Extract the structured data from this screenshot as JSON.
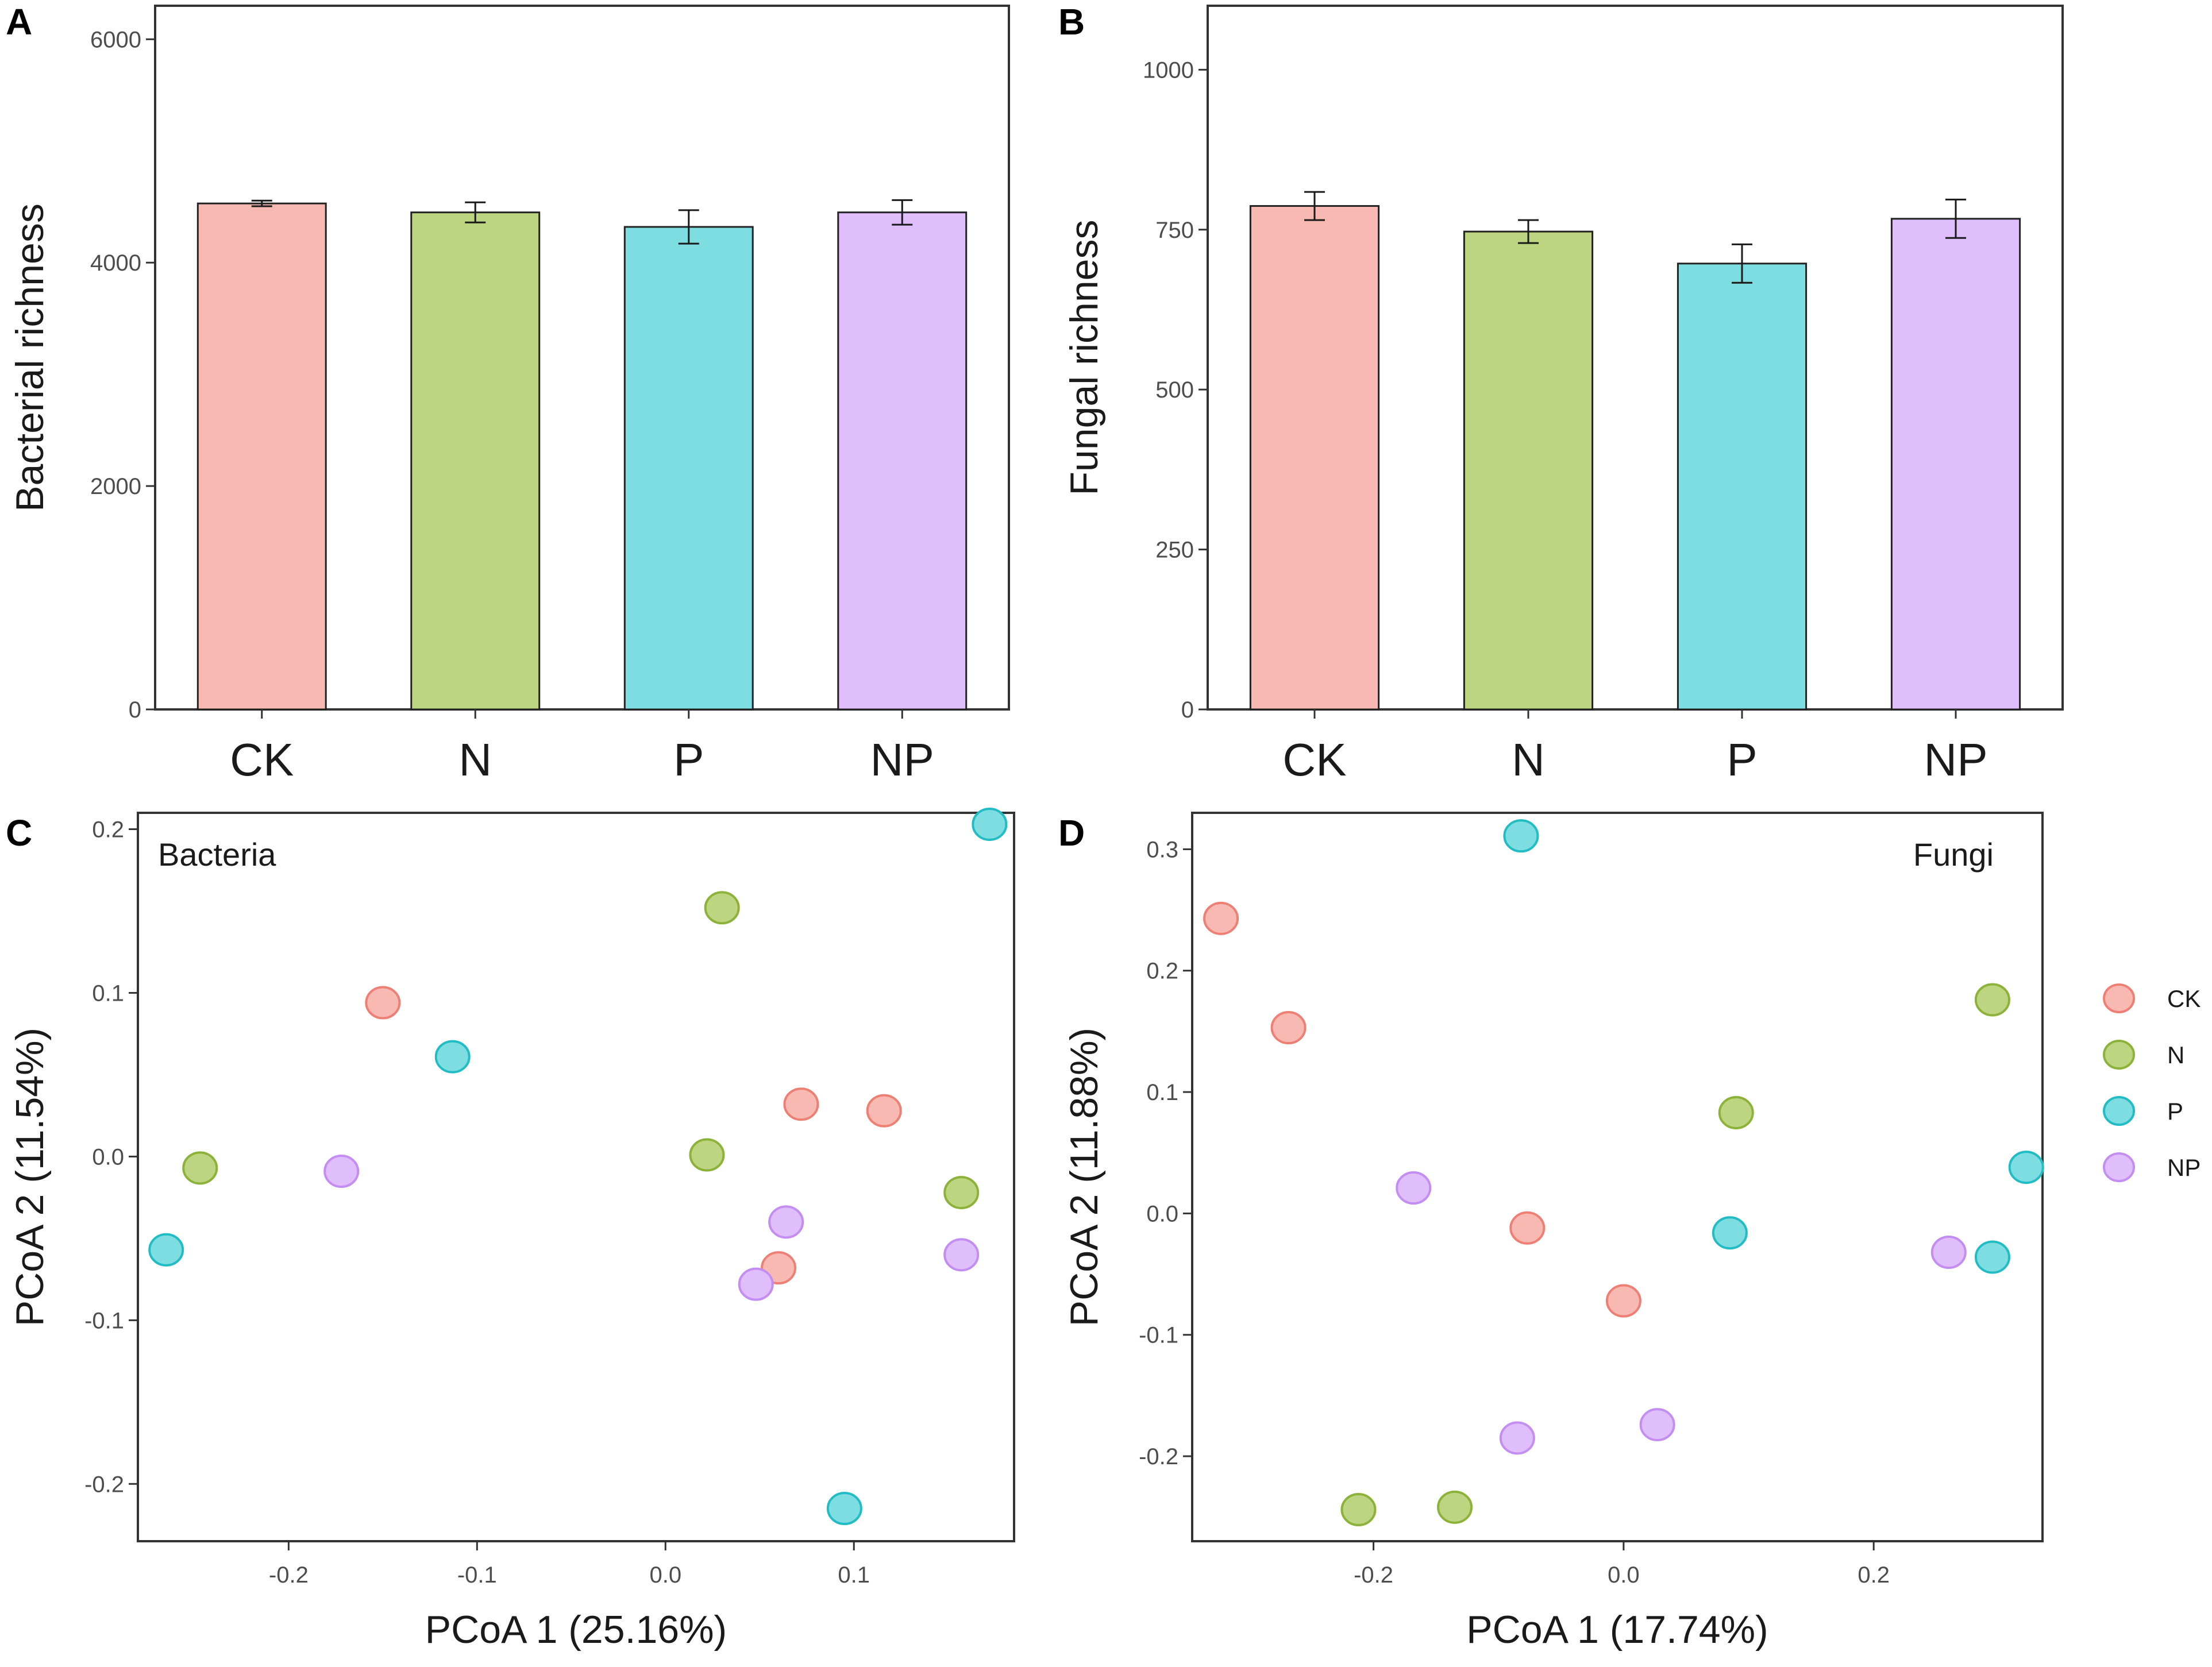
{
  "figure": {
    "panels": [
      "A",
      "B",
      "C",
      "D"
    ]
  },
  "colors": {
    "CK": {
      "fill": "#F8B9B2",
      "stroke": "#EE7F75"
    },
    "N": {
      "fill": "#BDD580",
      "stroke": "#8CB23A"
    },
    "P": {
      "fill": "#7DDDE0",
      "stroke": "#21BCC4"
    },
    "NP": {
      "fill": "#E0BEFC",
      "stroke": "#C48DF2"
    },
    "frame": "#333333",
    "errorbar": "#1a1a1a"
  },
  "legend": {
    "entries": [
      {
        "key": "CK",
        "label": "CK"
      },
      {
        "key": "N",
        "label": "N"
      },
      {
        "key": "P",
        "label": "P"
      },
      {
        "key": "NP",
        "label": "NP"
      }
    ]
  },
  "chart_data": [
    {
      "panel": "A",
      "type": "bar",
      "categories": [
        "CK",
        "N",
        "P",
        "NP"
      ],
      "values": [
        4530,
        4450,
        4320,
        4450
      ],
      "errors": [
        25,
        90,
        150,
        110
      ],
      "ylabel": "Bacterial richness",
      "xlabel": "",
      "ylim": [
        0,
        6300
      ],
      "yticks": [
        0,
        2000,
        4000,
        6000
      ],
      "ytick_labels": [
        "0",
        "2000",
        "4000",
        "6000"
      ]
    },
    {
      "panel": "B",
      "type": "bar",
      "categories": [
        "CK",
        "N",
        "P",
        "NP"
      ],
      "values": [
        787,
        747,
        697,
        767
      ],
      "errors": [
        22,
        18,
        30,
        30
      ],
      "ylabel": "Fungal richness",
      "xlabel": "",
      "ylim": [
        0,
        1100
      ],
      "yticks": [
        0,
        250,
        500,
        750,
        1000
      ],
      "ytick_labels": [
        "0",
        "250",
        "500",
        "750",
        "1000"
      ]
    },
    {
      "panel": "C",
      "type": "scatter",
      "title": "Bacteria",
      "xlabel": "PCoA 1 (25.16%)",
      "ylabel": "PCoA 2 (11.54%)",
      "xlim": [
        -0.28,
        0.185
      ],
      "ylim": [
        -0.235,
        0.21
      ],
      "xticks": [
        -0.2,
        -0.1,
        0.0,
        0.1
      ],
      "xtick_labels": [
        "-0.2",
        "-0.1",
        "0.0",
        "0.1"
      ],
      "yticks": [
        -0.2,
        -0.1,
        0.0,
        0.1,
        0.2
      ],
      "ytick_labels": [
        "-0.2",
        "-0.1",
        "0.0",
        "0.1",
        "0.2"
      ],
      "series": [
        {
          "name": "CK",
          "points": [
            [
              -0.15,
              0.094
            ],
            [
              0.072,
              0.032
            ],
            [
              0.116,
              0.028
            ],
            [
              0.06,
              -0.068
            ]
          ]
        },
        {
          "name": "N",
          "points": [
            [
              0.03,
              0.152
            ],
            [
              -0.247,
              -0.007
            ],
            [
              0.022,
              0.001
            ],
            [
              0.157,
              -0.022
            ]
          ]
        },
        {
          "name": "P",
          "points": [
            [
              0.172,
              0.203
            ],
            [
              -0.113,
              0.061
            ],
            [
              -0.265,
              -0.057
            ],
            [
              0.095,
              -0.215
            ]
          ]
        },
        {
          "name": "NP",
          "points": [
            [
              -0.172,
              -0.009
            ],
            [
              0.064,
              -0.04
            ],
            [
              0.157,
              -0.06
            ],
            [
              0.048,
              -0.078
            ]
          ]
        }
      ]
    },
    {
      "panel": "D",
      "type": "scatter",
      "title": "Fungi",
      "xlabel": "PCoA 1 (17.74%)",
      "ylabel": "PCoA 2 (11.88%)",
      "xlim": [
        -0.345,
        0.335
      ],
      "ylim": [
        -0.27,
        0.33
      ],
      "xticks": [
        -0.2,
        0.0,
        0.2
      ],
      "xtick_labels": [
        "-0.2",
        "0.0",
        "0.2"
      ],
      "yticks": [
        -0.2,
        -0.1,
        0.0,
        0.1,
        0.2,
        0.3
      ],
      "ytick_labels": [
        "-0.2",
        "-0.1",
        "0.0",
        "0.1",
        "0.2",
        "0.3"
      ],
      "series": [
        {
          "name": "CK",
          "points": [
            [
              -0.322,
              0.243
            ],
            [
              -0.268,
              0.153
            ],
            [
              -0.077,
              -0.012
            ],
            [
              0.0,
              -0.072
            ]
          ]
        },
        {
          "name": "N",
          "points": [
            [
              0.295,
              0.176
            ],
            [
              0.09,
              0.083
            ],
            [
              -0.212,
              -0.244
            ],
            [
              -0.135,
              -0.242
            ]
          ]
        },
        {
          "name": "P",
          "points": [
            [
              -0.082,
              0.311
            ],
            [
              0.322,
              0.038
            ],
            [
              0.085,
              -0.016
            ],
            [
              0.295,
              -0.036
            ]
          ]
        },
        {
          "name": "NP",
          "points": [
            [
              -0.168,
              0.021
            ],
            [
              0.26,
              -0.032
            ],
            [
              0.027,
              -0.174
            ],
            [
              -0.085,
              -0.185
            ]
          ]
        }
      ]
    }
  ]
}
